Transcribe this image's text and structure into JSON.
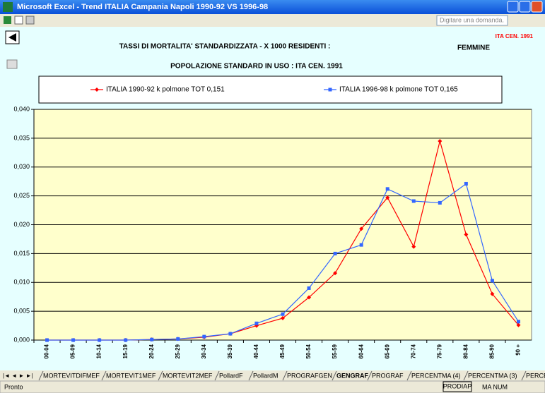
{
  "window": {
    "title": "Microsoft Excel - Trend ITALIA Campania Napoli 1990-92 VS 1996-98"
  },
  "toolbar": {
    "help_box": "Digitare una domanda."
  },
  "chart_data": {
    "type": "line",
    "title": "TASSI DI MORTALITA' STANDARDIZZATA - X 1000 RESIDENTI :",
    "subtitle": "POPOLAZIONE STANDARD IN USO : ITA CEN. 1991",
    "annotations": {
      "gender": "FEMMINE",
      "reference": "ITA CEN. 1991"
    },
    "categories": [
      "00-04",
      "05-09",
      "10-14",
      "15-19",
      "20-24",
      "25-29",
      "30-34",
      "35-39",
      "40-44",
      "45-49",
      "50-54",
      "55-59",
      "60-64",
      "65-69",
      "70-74",
      "75-79",
      "80-84",
      "85-90",
      "90 +"
    ],
    "series": [
      {
        "name": "ITALIA 1990-92 k polmone TOT 0,151",
        "color": "#ff0000",
        "marker": "diamond",
        "values": [
          0,
          0,
          0,
          0,
          0.0001,
          0.0002,
          0.0005,
          0.0011,
          0.0025,
          0.0038,
          0.0074,
          0.0116,
          0.0193,
          0.0247,
          0.0162,
          0.0345,
          0.0183,
          0.008,
          0.0026
        ]
      },
      {
        "name": "ITALIA 1996-98 k polmone TOT 0,165",
        "color": "#3366ff",
        "marker": "square",
        "values": [
          0,
          0,
          0,
          0,
          0.0001,
          0.0002,
          0.0006,
          0.0011,
          0.0029,
          0.0045,
          0.009,
          0.015,
          0.0165,
          0.0262,
          0.0241,
          0.0238,
          0.0271,
          0.0103,
          0.0032
        ]
      }
    ],
    "ylim": [
      0,
      0.04
    ],
    "yticks": [
      {
        "value": 0,
        "label": "0,000"
      },
      {
        "value": 0.005,
        "label": "0,005"
      },
      {
        "value": 0.01,
        "label": "0,010"
      },
      {
        "value": 0.015,
        "label": "0,015"
      },
      {
        "value": 0.02,
        "label": "0,020"
      },
      {
        "value": 0.025,
        "label": "0,025"
      },
      {
        "value": 0.03,
        "label": "0,030"
      },
      {
        "value": 0.035,
        "label": "0,035"
      },
      {
        "value": 0.04,
        "label": "0,040"
      }
    ],
    "grid": true
  },
  "sheet_tabs": [
    "MORTEVITDIFMEF",
    "MORTEVIT1MEF",
    "MORTEVIT2MEF",
    "PollardF",
    "PollardM",
    "PROGRAFGEN",
    "GENGRAF",
    "PROGRAF",
    "PERCENTMA (4)",
    "PERCENTMA (3)",
    "PERCEN"
  ],
  "status": {
    "left": "Pronto",
    "mode": "PRODIAP",
    "keys": "MA NUM"
  }
}
